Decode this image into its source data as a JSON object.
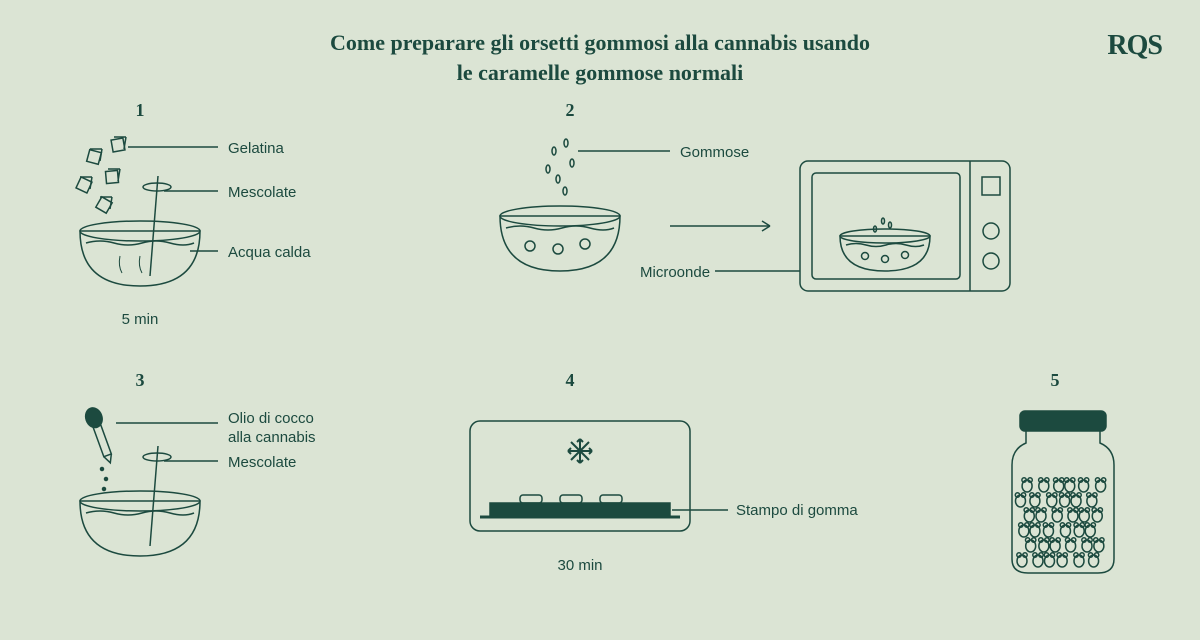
{
  "colors": {
    "bg": "#dbe4d4",
    "stroke": "#1c4a3f",
    "text": "#1c4a3f"
  },
  "title_line1": "Come preparare gli orsetti gommosi alla cannabis usando",
  "title_line2": "le caramelle gommose normali",
  "logo": "RQS",
  "steps": {
    "s1": {
      "num": "1",
      "label_gelatina": "Gelatina",
      "label_mescolate": "Mescolate",
      "label_acqua": "Acqua calda",
      "time": "5 min"
    },
    "s2": {
      "num": "2",
      "label_gommose": "Gommose",
      "label_microonde": "Microonde"
    },
    "s3": {
      "num": "3",
      "label_olio": "Olio di cocco alla cannabis",
      "label_mescolate": "Mescolate"
    },
    "s4": {
      "num": "4",
      "label_stampo": "Stampo di gomma",
      "time": "30 min"
    },
    "s5": {
      "num": "5"
    }
  },
  "layout": {
    "title_fontsize": 22,
    "label_fontsize": 15,
    "stroke_width": 1.5
  }
}
